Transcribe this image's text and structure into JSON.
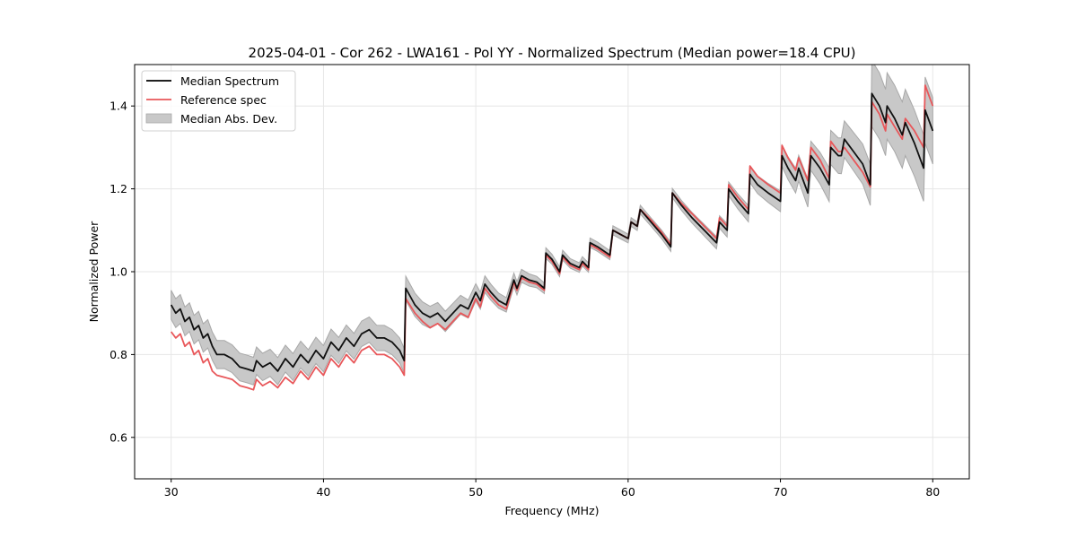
{
  "chart_data": {
    "type": "line",
    "title": "2025-04-01 - Cor 262 - LWA161 - Pol YY - Normalized Spectrum (Median power=18.4 CPU)",
    "xlabel": "Frequency (MHz)",
    "ylabel": "Normalized Power",
    "xlim": [
      27.6,
      82.4
    ],
    "ylim": [
      0.5,
      1.5
    ],
    "xticks": [
      30,
      40,
      50,
      60,
      70,
      80
    ],
    "xtick_labels": [
      "30",
      "40",
      "50",
      "60",
      "70",
      "80"
    ],
    "yticks": [
      0.6,
      0.8,
      1.0,
      1.2,
      1.4
    ],
    "ytick_labels": [
      "0.6",
      "0.8",
      "1.0",
      "1.2",
      "1.4"
    ],
    "grid": true,
    "legend": {
      "placement": "top-left",
      "entries": [
        {
          "label": "Median Spectrum",
          "kind": "line",
          "color": "#000000"
        },
        {
          "label": "Reference spec",
          "kind": "line",
          "color": "#e8575a"
        },
        {
          "label": "Median Abs. Dev.",
          "kind": "patch",
          "color": "#c8c8c8"
        }
      ]
    },
    "colors": {
      "median": "#000000",
      "reference": "#e8575a",
      "band_fill": "#c8c8c8",
      "band_edge": "#a8a8a8",
      "grid": "#e6e6e6"
    },
    "series": [
      {
        "name": "Median Spectrum",
        "x": [
          30.0,
          30.3,
          30.6,
          30.9,
          31.2,
          31.5,
          31.8,
          32.1,
          32.4,
          32.7,
          33.0,
          33.5,
          34.0,
          34.5,
          35.0,
          35.4,
          35.6,
          36.0,
          36.5,
          37.0,
          37.5,
          38.0,
          38.5,
          39.0,
          39.5,
          40.0,
          40.5,
          41.0,
          41.5,
          42.0,
          42.5,
          43.0,
          43.5,
          44.0,
          44.5,
          45.0,
          45.3,
          45.4,
          46.0,
          46.5,
          47.0,
          47.5,
          48.0,
          48.5,
          49.0,
          49.5,
          50.0,
          50.3,
          50.6,
          51.0,
          51.5,
          52.0,
          52.5,
          52.7,
          53.0,
          53.5,
          54.0,
          54.5,
          54.6,
          55.0,
          55.5,
          55.7,
          56.2,
          56.8,
          57.0,
          57.4,
          57.5,
          58.0,
          58.8,
          59.0,
          59.5,
          60.0,
          60.2,
          60.6,
          60.8,
          61.5,
          62.2,
          62.8,
          62.9,
          63.5,
          64.2,
          65.0,
          65.8,
          66.0,
          66.5,
          66.6,
          67.2,
          67.9,
          68.0,
          68.5,
          69.2,
          70.0,
          70.1,
          70.5,
          71.0,
          71.2,
          71.8,
          72.0,
          72.6,
          73.2,
          73.3,
          73.8,
          74.0,
          74.2,
          74.8,
          75.4,
          75.9,
          76.0,
          76.5,
          76.9,
          77.0,
          77.5,
          78.0,
          78.2,
          78.8,
          79.4,
          79.5,
          79.8,
          80.0
        ],
        "values": [
          0.92,
          0.9,
          0.91,
          0.88,
          0.89,
          0.86,
          0.87,
          0.84,
          0.85,
          0.82,
          0.8,
          0.8,
          0.79,
          0.77,
          0.765,
          0.76,
          0.785,
          0.77,
          0.78,
          0.76,
          0.79,
          0.77,
          0.8,
          0.78,
          0.81,
          0.79,
          0.83,
          0.81,
          0.84,
          0.82,
          0.85,
          0.86,
          0.84,
          0.84,
          0.83,
          0.81,
          0.785,
          0.96,
          0.92,
          0.9,
          0.89,
          0.9,
          0.88,
          0.9,
          0.92,
          0.91,
          0.95,
          0.93,
          0.97,
          0.95,
          0.93,
          0.92,
          0.98,
          0.96,
          0.99,
          0.98,
          0.975,
          0.96,
          1.045,
          1.03,
          1.0,
          1.04,
          1.02,
          1.01,
          1.025,
          1.01,
          1.07,
          1.06,
          1.04,
          1.1,
          1.09,
          1.08,
          1.12,
          1.11,
          1.15,
          1.12,
          1.09,
          1.06,
          1.19,
          1.16,
          1.13,
          1.1,
          1.07,
          1.12,
          1.1,
          1.2,
          1.17,
          1.14,
          1.235,
          1.21,
          1.19,
          1.17,
          1.28,
          1.25,
          1.22,
          1.25,
          1.19,
          1.28,
          1.25,
          1.21,
          1.3,
          1.28,
          1.28,
          1.32,
          1.29,
          1.26,
          1.21,
          1.43,
          1.4,
          1.36,
          1.4,
          1.37,
          1.33,
          1.36,
          1.31,
          1.25,
          1.39,
          1.36,
          1.34
        ]
      },
      {
        "name": "Reference spec",
        "x": [
          30.0,
          30.3,
          30.6,
          30.9,
          31.2,
          31.5,
          31.8,
          32.1,
          32.4,
          32.7,
          33.0,
          33.5,
          34.0,
          34.5,
          35.0,
          35.4,
          35.6,
          36.0,
          36.5,
          37.0,
          37.5,
          38.0,
          38.5,
          39.0,
          39.5,
          40.0,
          40.5,
          41.0,
          41.5,
          42.0,
          42.5,
          43.0,
          43.5,
          44.0,
          44.5,
          45.0,
          45.3,
          45.4,
          46.0,
          46.5,
          47.0,
          47.5,
          48.0,
          48.5,
          49.0,
          49.5,
          50.0,
          50.3,
          50.6,
          51.0,
          51.5,
          52.0,
          52.5,
          52.7,
          53.0,
          53.5,
          54.0,
          54.5,
          54.6,
          55.0,
          55.5,
          55.7,
          56.2,
          56.8,
          57.0,
          57.4,
          57.5,
          58.0,
          58.8,
          59.0,
          59.5,
          60.0,
          60.2,
          60.6,
          60.8,
          61.5,
          62.2,
          62.8,
          62.9,
          63.5,
          64.2,
          65.0,
          65.8,
          66.0,
          66.5,
          66.6,
          67.2,
          67.9,
          68.0,
          68.5,
          69.2,
          70.0,
          70.1,
          70.5,
          71.0,
          71.2,
          71.8,
          72.0,
          72.6,
          73.2,
          73.3,
          73.8,
          74.0,
          74.2,
          74.8,
          75.4,
          75.9,
          76.0,
          76.5,
          76.9,
          77.0,
          77.5,
          78.0,
          78.2,
          78.8,
          79.4,
          79.5,
          79.8,
          80.0
        ],
        "values": [
          0.855,
          0.84,
          0.85,
          0.82,
          0.83,
          0.8,
          0.81,
          0.78,
          0.79,
          0.76,
          0.75,
          0.745,
          0.74,
          0.725,
          0.72,
          0.715,
          0.74,
          0.725,
          0.735,
          0.72,
          0.745,
          0.73,
          0.76,
          0.74,
          0.77,
          0.75,
          0.79,
          0.77,
          0.8,
          0.78,
          0.81,
          0.82,
          0.8,
          0.8,
          0.79,
          0.77,
          0.75,
          0.935,
          0.9,
          0.88,
          0.865,
          0.875,
          0.86,
          0.88,
          0.9,
          0.89,
          0.935,
          0.915,
          0.96,
          0.94,
          0.92,
          0.91,
          0.975,
          0.955,
          0.985,
          0.975,
          0.97,
          0.955,
          1.04,
          1.025,
          0.995,
          1.035,
          1.015,
          1.005,
          1.02,
          1.005,
          1.065,
          1.055,
          1.035,
          1.1,
          1.09,
          1.08,
          1.12,
          1.11,
          1.15,
          1.125,
          1.095,
          1.065,
          1.19,
          1.165,
          1.14,
          1.11,
          1.08,
          1.13,
          1.11,
          1.21,
          1.18,
          1.15,
          1.255,
          1.23,
          1.21,
          1.19,
          1.305,
          1.275,
          1.245,
          1.275,
          1.22,
          1.3,
          1.27,
          1.225,
          1.315,
          1.29,
          1.29,
          1.3,
          1.27,
          1.24,
          1.205,
          1.41,
          1.38,
          1.34,
          1.38,
          1.35,
          1.32,
          1.37,
          1.34,
          1.3,
          1.45,
          1.42,
          1.4
        ]
      }
    ],
    "mad_band": {
      "name": "Median Abs. Dev.",
      "half_width_at": {
        "x": [
          30,
          45,
          55,
          62,
          66,
          70,
          73,
          75.9,
          76,
          80
        ],
        "values": [
          0.035,
          0.03,
          0.012,
          0.01,
          0.015,
          0.025,
          0.04,
          0.05,
          0.08,
          0.08
        ]
      }
    }
  }
}
